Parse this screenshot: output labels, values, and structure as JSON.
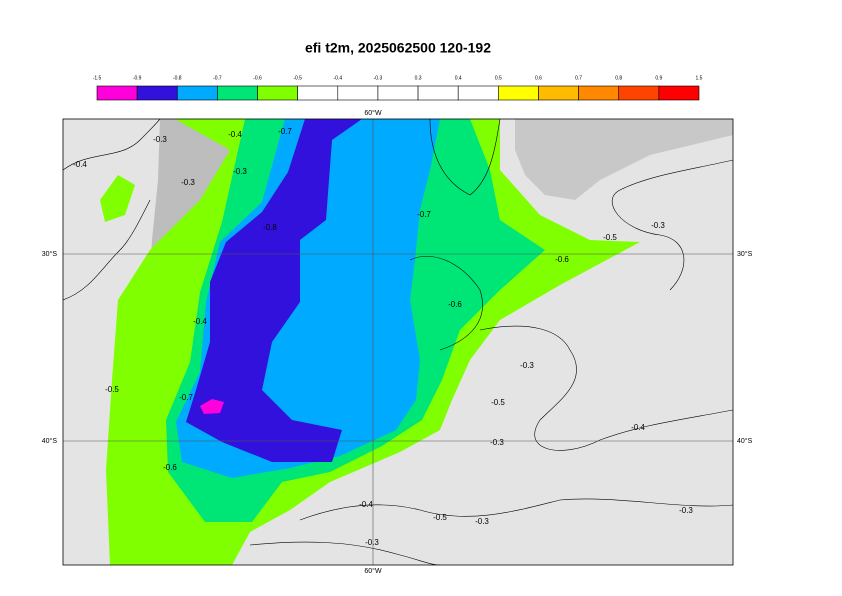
{
  "title": "efi t2m, 2025062500 120-192",
  "colorbar": {
    "ticks": [
      -1.5,
      -0.9,
      -0.8,
      -0.7,
      -0.6,
      -0.5,
      -0.4,
      -0.3,
      0.3,
      0.4,
      0.5,
      0.6,
      0.7,
      0.8,
      0.9,
      1.5
    ],
    "colors": [
      "#ff00dd",
      "#3311dd",
      "#00aaff",
      "#00e676",
      "#80ff00",
      "#ffffff",
      "#ffffff",
      "#ffffff",
      "#ffffff",
      "#ffffff",
      "#ffff00",
      "#ffbb00",
      "#ff8800",
      "#ff4400",
      "#ff0000"
    ]
  },
  "map": {
    "lon_label": "60°W",
    "lat_labels": [
      "30°S",
      "40°S"
    ],
    "contour_labels": [
      "-0.4",
      "-0.3",
      "-0.3",
      "-0.3",
      "-0.4",
      "-0.7",
      "-0.8",
      "-0.7",
      "-0.6",
      "-0.5",
      "-0.3",
      "-0.6",
      "-0.4",
      "-0.5",
      "-0.7",
      "-0.6",
      "-0.3",
      "-0.5",
      "-0.3",
      "-0.4",
      "-0.4",
      "-0.5",
      "-0.3",
      "-0.3",
      "-0.3"
    ]
  }
}
